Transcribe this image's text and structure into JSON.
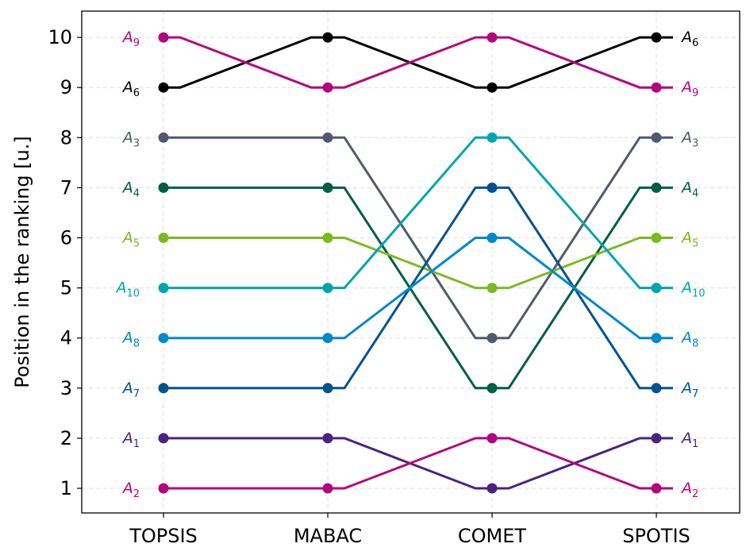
{
  "chart_data": {
    "type": "line",
    "title": "",
    "xlabel": "",
    "ylabel": "Position in the ranking [u.]",
    "categories": [
      "TOPSIS",
      "MABAC",
      "COMET",
      "SPOTIS"
    ],
    "yticks": [
      1,
      2,
      3,
      4,
      5,
      6,
      7,
      8,
      9,
      10
    ],
    "ylim": [
      0.5,
      10.5
    ],
    "grid": true,
    "legend": "labels at both line ends",
    "series": [
      {
        "name": "A",
        "sub": "1",
        "color": "#4a2380",
        "values": [
          2,
          2,
          1,
          2
        ]
      },
      {
        "name": "A",
        "sub": "2",
        "color": "#b5057c",
        "values": [
          1,
          1,
          2,
          1
        ]
      },
      {
        "name": "A",
        "sub": "3",
        "color": "#4f5b6c",
        "values": [
          8,
          8,
          4,
          8
        ]
      },
      {
        "name": "A",
        "sub": "4",
        "color": "#005e45",
        "values": [
          7,
          7,
          3,
          7
        ]
      },
      {
        "name": "A",
        "sub": "5",
        "color": "#7aba20",
        "values": [
          6,
          6,
          5,
          6
        ]
      },
      {
        "name": "A",
        "sub": "6",
        "color": "#000000",
        "values": [
          9,
          10,
          9,
          10
        ]
      },
      {
        "name": "A",
        "sub": "7",
        "color": "#01538f",
        "values": [
          3,
          3,
          7,
          3
        ]
      },
      {
        "name": "A",
        "sub": "8",
        "color": "#0288cc",
        "values": [
          4,
          4,
          6,
          4
        ]
      },
      {
        "name": "A",
        "sub": "9",
        "color": "#b5057c",
        "values": [
          10,
          9,
          10,
          9
        ]
      },
      {
        "name": "A",
        "sub": "10",
        "color": "#00a5ae",
        "values": [
          5,
          5,
          8,
          5
        ]
      }
    ]
  }
}
